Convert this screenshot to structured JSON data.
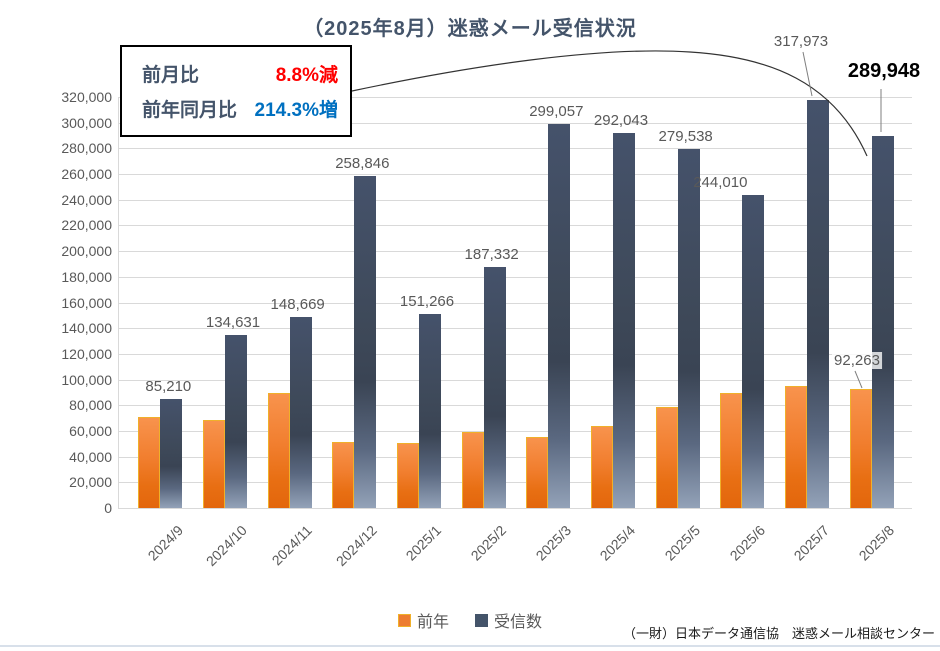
{
  "title": "（2025年8月）迷惑メール受信状況",
  "annotation": {
    "rows": [
      {
        "label": "前月比",
        "value": "8.8%減",
        "value_color": "#FF0000"
      },
      {
        "label": "前年同月比",
        "value": "214.3%増",
        "value_color": "#0070C0"
      }
    ]
  },
  "legend": [
    {
      "label": "前年",
      "color": "#ED7D31"
    },
    {
      "label": "受信数",
      "color": "#44546A"
    }
  ],
  "footer": {
    "text": "（一財）日本データ通信協　迷惑メール相談センター"
  },
  "chart_data": {
    "type": "bar",
    "title": "（2025年8月）迷惑メール受信状況",
    "categories": [
      "2024/9",
      "2024/10",
      "2024/11",
      "2024/12",
      "2025/1",
      "2025/2",
      "2025/3",
      "2025/4",
      "2025/5",
      "2025/6",
      "2025/7",
      "2025/8"
    ],
    "series": [
      {
        "name": "前年",
        "color": "#ED7D31",
        "values": [
          70600,
          68300,
          89400,
          51600,
          50400,
          58900,
          55300,
          63800,
          78400,
          89400,
          95200,
          92263
        ],
        "labeled_points": [
          11
        ]
      },
      {
        "name": "受信数",
        "color": "#44546A",
        "values": [
          85210,
          134631,
          148669,
          258846,
          151266,
          187332,
          299057,
          292043,
          279538,
          244010,
          317973,
          289948
        ],
        "labeled_points": [
          0,
          1,
          2,
          3,
          4,
          5,
          6,
          7,
          8,
          9,
          10,
          11
        ],
        "highlighted_point": 11
      }
    ],
    "ylim": [
      0,
      320000
    ],
    "ytick_step": 20000,
    "grid": true,
    "legend_position": "bottom",
    "colors": {
      "grid": "#D9D9D9",
      "label_text": "#595959",
      "title_text": "#44546A",
      "highlight_text": "#000000"
    }
  }
}
